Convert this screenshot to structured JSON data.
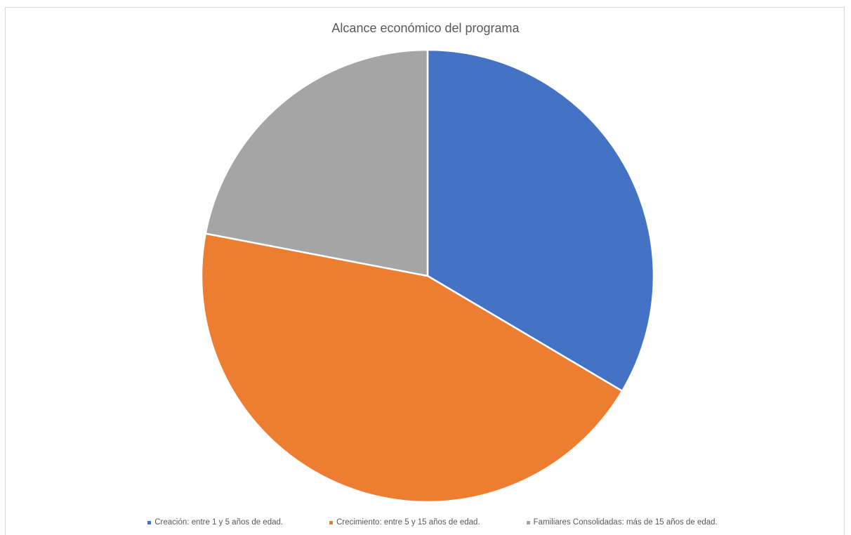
{
  "chart_data": {
    "type": "pie",
    "title": "Alcance económico del programa",
    "categories": [
      "Creación: entre 1 y 5 años de edad.",
      "Crecimiento: entre 5 y 15 años de edad.",
      "Familiares Consolidadas: más de 15 años de edad."
    ],
    "values": [
      33.5,
      44.5,
      22.0
    ],
    "colors": [
      "#4472C4",
      "#ED7D31",
      "#A5A5A5"
    ],
    "legend_position": "bottom",
    "start_angle_deg": 0,
    "direction": "clockwise"
  }
}
